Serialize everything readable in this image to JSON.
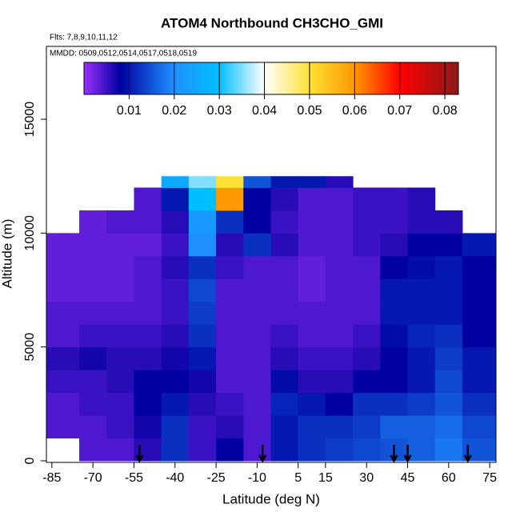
{
  "chart_data": {
    "type": "heatmap",
    "title": "ATOM4 Northbound CH3CHO_GMI",
    "subtitle_flights": "Flts: 7,8,9,10,11,12",
    "subtitle_dates": "MMDD: 0509,0512,0514,0517,0518,0519",
    "x_label": "Latitude (deg N)",
    "y_label": "Altitude (m)",
    "xlim": [
      -87,
      77.3
    ],
    "ylim": [
      0,
      18200
    ],
    "xticks": [
      -85,
      -70,
      -55,
      -40,
      -25,
      -10,
      5,
      15,
      30,
      45,
      60,
      75
    ],
    "yticks": [
      0,
      5000,
      10000,
      15000
    ],
    "x_edges": [
      -87,
      -75,
      -65,
      -55,
      -45,
      -35,
      -25,
      -15,
      -5,
      5,
      15,
      25,
      35,
      45,
      55,
      65,
      77
    ],
    "y_edges": [
      0,
      1000,
      2000,
      3000,
      4000,
      5000,
      6000,
      7000,
      8000,
      9000,
      10000,
      11000,
      12000,
      12500
    ],
    "z": [
      [
        null,
        0.004,
        0.004,
        0.006,
        0.012,
        0.005,
        0.008,
        0.004,
        0.01,
        0.012,
        0.013,
        0.014,
        0.015,
        0.016,
        0.018,
        0.015
      ],
      [
        0.004,
        0.004,
        0.005,
        0.007,
        0.012,
        0.005,
        0.006,
        0.004,
        0.01,
        0.012,
        0.012,
        0.013,
        0.016,
        0.016,
        0.017,
        0.014
      ],
      [
        0.004,
        0.005,
        0.005,
        0.008,
        0.01,
        0.006,
        0.005,
        0.004,
        0.011,
        0.01,
        0.008,
        0.012,
        0.012,
        0.013,
        0.015,
        0.012
      ],
      [
        0.005,
        0.005,
        0.006,
        0.008,
        0.008,
        0.007,
        0.004,
        0.004,
        0.009,
        0.006,
        0.006,
        0.008,
        0.008,
        0.01,
        0.014,
        0.01
      ],
      [
        0.006,
        0.007,
        0.006,
        0.006,
        0.007,
        0.01,
        0.004,
        0.004,
        0.006,
        0.005,
        0.005,
        0.006,
        0.008,
        0.01,
        0.013,
        0.01
      ],
      [
        0.004,
        0.005,
        0.005,
        0.005,
        0.006,
        0.012,
        0.004,
        0.004,
        0.005,
        0.004,
        0.004,
        0.005,
        0.009,
        0.011,
        0.012,
        0.008
      ],
      [
        0.004,
        0.004,
        0.004,
        0.004,
        0.005,
        0.013,
        0.004,
        0.004,
        0.004,
        0.004,
        0.004,
        0.004,
        0.01,
        0.01,
        0.01,
        0.008
      ],
      [
        0.003,
        0.003,
        0.003,
        0.004,
        0.005,
        0.014,
        0.004,
        0.004,
        0.004,
        0.003,
        0.004,
        0.004,
        0.01,
        0.01,
        0.01,
        0.008
      ],
      [
        0.003,
        0.003,
        0.003,
        0.004,
        0.006,
        0.012,
        0.005,
        0.004,
        0.004,
        0.003,
        0.004,
        0.004,
        0.008,
        0.009,
        0.01,
        0.008
      ],
      [
        0.003,
        0.003,
        0.003,
        0.003,
        0.005,
        0.02,
        0.006,
        0.012,
        0.006,
        0.004,
        0.004,
        0.005,
        0.006,
        0.008,
        0.008,
        0.01
      ],
      [
        null,
        0.003,
        0.004,
        0.004,
        0.006,
        0.022,
        0.012,
        0.008,
        0.005,
        0.004,
        0.004,
        0.005,
        0.005,
        0.006,
        0.006,
        null
      ],
      [
        null,
        null,
        null,
        0.004,
        0.01,
        0.03,
        0.06,
        0.008,
        0.006,
        0.004,
        0.004,
        0.005,
        0.005,
        0.006,
        null,
        null
      ],
      [
        null,
        null,
        null,
        null,
        0.025,
        0.035,
        0.05,
        0.015,
        0.01,
        0.01,
        0.006,
        null,
        null,
        null,
        null,
        null
      ]
    ],
    "zlim": [
      0,
      0.083
    ],
    "zticks": [
      0.01,
      0.02,
      0.03,
      0.04,
      0.05,
      0.06,
      0.07,
      0.08
    ],
    "colorscale": [
      [
        0,
        "#9b30ff"
      ],
      [
        0.008,
        "#0000a0"
      ],
      [
        0.02,
        "#1e90ff"
      ],
      [
        0.03,
        "#00bfff"
      ],
      [
        0.04,
        "#ffffff"
      ],
      [
        0.05,
        "#ffe135"
      ],
      [
        0.06,
        "#ff9900"
      ],
      [
        0.07,
        "#ff0000"
      ],
      [
        0.083,
        "#8b1a1a"
      ]
    ],
    "arrows": [
      -53,
      -8,
      40,
      45,
      67
    ]
  }
}
